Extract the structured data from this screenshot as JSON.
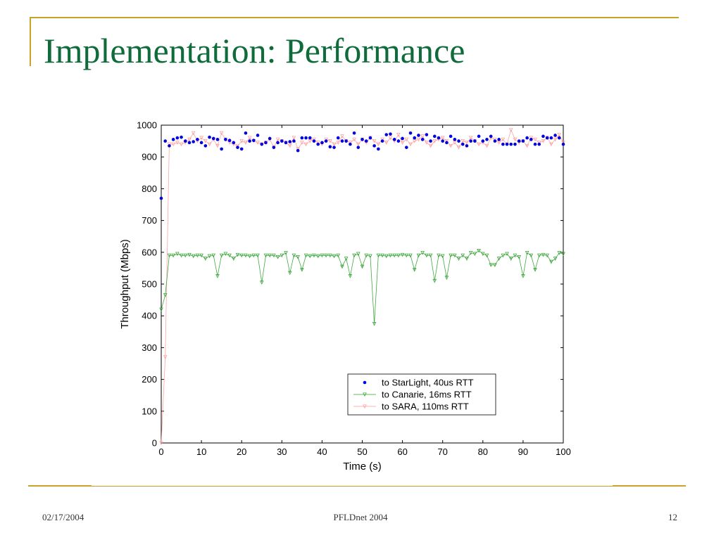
{
  "slide": {
    "title": "Implementation: Performance",
    "footer_date": "02/17/2004",
    "footer_center": "PFLDnet 2004",
    "page_number": "12"
  },
  "colors": {
    "title": "#0f6b3a",
    "frame": "#c9a227",
    "starlight": "#0000e0",
    "canarie": "#2ca02c",
    "sara": "#ff9a9a"
  },
  "chart_data": {
    "type": "line",
    "xlabel": "Time (s)",
    "ylabel": "Throughput (Mbps)",
    "xlim": [
      0,
      100
    ],
    "ylim": [
      0,
      1000
    ],
    "xticks": [
      0,
      10,
      20,
      30,
      40,
      50,
      60,
      70,
      80,
      90,
      100
    ],
    "yticks": [
      0,
      100,
      200,
      300,
      400,
      500,
      600,
      700,
      800,
      900,
      1000
    ],
    "grid": false,
    "legend_position": "lower-right",
    "series": [
      {
        "name": "to StarLight, 40us RTT",
        "marker": "dot",
        "x": [
          0,
          1,
          2,
          3,
          4,
          5,
          6,
          7,
          8,
          9,
          10,
          11,
          12,
          13,
          14,
          15,
          16,
          17,
          18,
          19,
          20,
          21,
          22,
          23,
          24,
          25,
          26,
          27,
          28,
          29,
          30,
          31,
          32,
          33,
          34,
          35,
          36,
          37,
          38,
          39,
          40,
          41,
          42,
          43,
          44,
          45,
          46,
          47,
          48,
          49,
          50,
          51,
          52,
          53,
          54,
          55,
          56,
          57,
          58,
          59,
          60,
          61,
          62,
          63,
          64,
          65,
          66,
          67,
          68,
          69,
          70,
          71,
          72,
          73,
          74,
          75,
          76,
          77,
          78,
          79,
          80,
          81,
          82,
          83,
          84,
          85,
          86,
          87,
          88,
          89,
          90,
          91,
          92,
          93,
          94,
          95,
          96,
          97,
          98,
          99,
          100
        ],
        "y": [
          770,
          950,
          935,
          955,
          960,
          962,
          950,
          945,
          948,
          955,
          945,
          935,
          962,
          958,
          955,
          925,
          955,
          952,
          945,
          930,
          925,
          975,
          950,
          952,
          968,
          940,
          945,
          958,
          930,
          945,
          950,
          945,
          948,
          950,
          920,
          960,
          960,
          960,
          950,
          940,
          945,
          950,
          932,
          930,
          960,
          950,
          950,
          940,
          975,
          930,
          955,
          950,
          960,
          935,
          925,
          950,
          970,
          972,
          955,
          950,
          958,
          930,
          975,
          960,
          968,
          955,
          970,
          950,
          965,
          960,
          950,
          945,
          965,
          955,
          950,
          940,
          935,
          950,
          950,
          965,
          950,
          955,
          965,
          950,
          955,
          940,
          940,
          940,
          940,
          950,
          950,
          960,
          955,
          940,
          940,
          965,
          960,
          960,
          968,
          960,
          940
        ]
      },
      {
        "name": "to Canarie, 16ms RTT",
        "marker": "triangle",
        "x": [
          0,
          1,
          2,
          3,
          4,
          5,
          6,
          7,
          8,
          9,
          10,
          11,
          12,
          13,
          14,
          15,
          16,
          17,
          18,
          19,
          20,
          21,
          22,
          23,
          24,
          25,
          26,
          27,
          28,
          29,
          30,
          31,
          32,
          33,
          34,
          35,
          36,
          37,
          38,
          39,
          40,
          41,
          42,
          43,
          44,
          45,
          46,
          47,
          48,
          49,
          50,
          51,
          52,
          53,
          54,
          55,
          56,
          57,
          58,
          59,
          60,
          61,
          62,
          63,
          64,
          65,
          66,
          67,
          68,
          69,
          70,
          71,
          72,
          73,
          74,
          75,
          76,
          77,
          78,
          79,
          80,
          81,
          82,
          83,
          84,
          85,
          86,
          87,
          88,
          89,
          90,
          91,
          92,
          93,
          94,
          95,
          96,
          97,
          98,
          99,
          100
        ],
        "y": [
          420,
          465,
          590,
          590,
          595,
          590,
          590,
          592,
          588,
          590,
          590,
          580,
          588,
          590,
          525,
          590,
          595,
          590,
          580,
          592,
          590,
          590,
          588,
          590,
          590,
          505,
          590,
          590,
          590,
          585,
          590,
          598,
          535,
          590,
          585,
          545,
          590,
          588,
          590,
          588,
          590,
          590,
          590,
          588,
          590,
          555,
          580,
          525,
          590,
          595,
          555,
          590,
          588,
          375,
          590,
          590,
          588,
          590,
          590,
          590,
          592,
          590,
          590,
          545,
          590,
          598,
          590,
          590,
          510,
          590,
          588,
          520,
          590,
          590,
          580,
          590,
          580,
          598,
          595,
          605,
          595,
          590,
          560,
          560,
          580,
          590,
          595,
          580,
          590,
          585,
          525,
          598,
          590,
          545,
          590,
          592,
          590,
          570,
          580,
          598,
          595
        ]
      },
      {
        "name": "to SARA, 110ms RTT",
        "marker": "triangle",
        "x": [
          0,
          1,
          2,
          3,
          4,
          5,
          6,
          7,
          8,
          9,
          10,
          11,
          12,
          13,
          14,
          15,
          16,
          17,
          18,
          19,
          20,
          21,
          22,
          23,
          24,
          25,
          26,
          27,
          28,
          29,
          30,
          31,
          32,
          33,
          34,
          35,
          36,
          37,
          38,
          39,
          40,
          41,
          42,
          43,
          44,
          45,
          46,
          47,
          48,
          49,
          50,
          51,
          52,
          53,
          54,
          55,
          56,
          57,
          58,
          59,
          60,
          61,
          62,
          63,
          64,
          65,
          66,
          67,
          68,
          69,
          70,
          71,
          72,
          73,
          74,
          75,
          76,
          77,
          78,
          79,
          80,
          81,
          82,
          83,
          84,
          85,
          86,
          87,
          88,
          89,
          90,
          91,
          92,
          93,
          94,
          95,
          96,
          97,
          98,
          99,
          100
        ],
        "y": [
          0,
          270,
          940,
          940,
          945,
          940,
          945,
          955,
          975,
          950,
          960,
          950,
          940,
          955,
          935,
          975,
          955,
          945,
          940,
          935,
          950,
          945,
          960,
          950,
          945,
          940,
          945,
          955,
          930,
          955,
          950,
          945,
          935,
          960,
          925,
          945,
          940,
          950,
          955,
          945,
          940,
          955,
          950,
          940,
          945,
          965,
          950,
          945,
          955,
          940,
          955,
          945,
          960,
          950,
          940,
          955,
          945,
          960,
          950,
          970,
          945,
          955,
          940,
          950,
          955,
          965,
          945,
          935,
          950,
          955,
          960,
          950,
          935,
          945,
          930,
          950,
          945,
          960,
          950,
          940,
          945,
          935,
          960,
          955,
          945,
          955,
          940,
          985,
          955,
          945,
          950,
          935,
          960,
          955,
          945,
          950,
          960,
          940,
          955,
          970,
          945
        ]
      }
    ]
  }
}
